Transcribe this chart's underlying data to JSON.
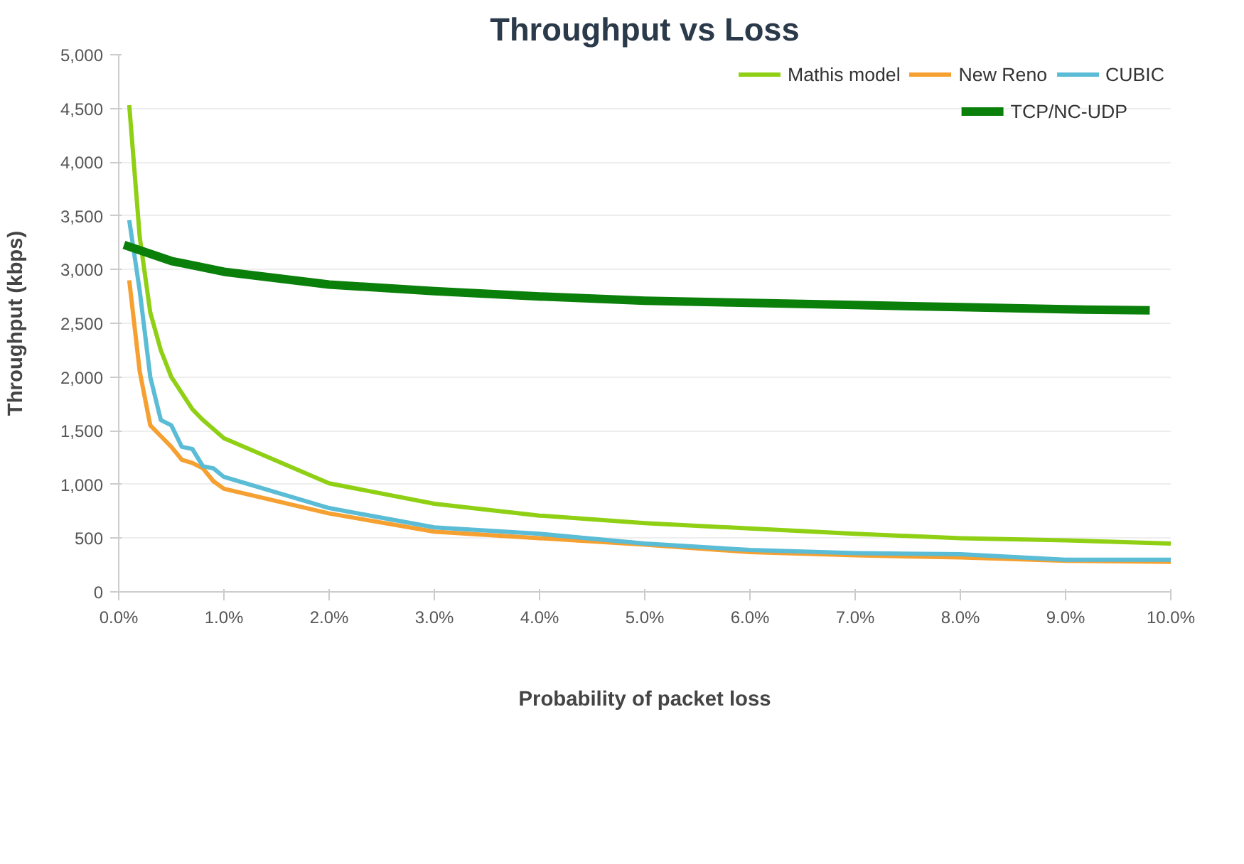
{
  "chart_data": {
    "type": "line",
    "title": "Throughput vs Loss",
    "xlabel": "Probability of packet loss",
    "ylabel": "Throughput (kbps)",
    "xlim": [
      0,
      10
    ],
    "ylim": [
      0,
      5000
    ],
    "xticks": [
      {
        "value": 0,
        "label": "0.0%"
      },
      {
        "value": 1,
        "label": "1.0%"
      },
      {
        "value": 2,
        "label": "2.0%"
      },
      {
        "value": 3,
        "label": "3.0%"
      },
      {
        "value": 4,
        "label": "4.0%"
      },
      {
        "value": 5,
        "label": "5.0%"
      },
      {
        "value": 6,
        "label": "6.0%"
      },
      {
        "value": 7,
        "label": "7.0%"
      },
      {
        "value": 8,
        "label": "8.0%"
      },
      {
        "value": 9,
        "label": "9.0%"
      },
      {
        "value": 10,
        "label": "10.0%"
      }
    ],
    "yticks": [
      0,
      500,
      {
        "value": 1000,
        "label": "1,000"
      },
      {
        "value": 1500,
        "label": "1,500"
      },
      {
        "value": 2000,
        "label": "2,000"
      },
      {
        "value": 2500,
        "label": "2,500"
      },
      {
        "value": 3000,
        "label": "3,000"
      },
      {
        "value": 3500,
        "label": "3,500"
      },
      {
        "value": 4000,
        "label": "4,000"
      },
      {
        "value": 4500,
        "label": "4,500"
      },
      {
        "value": 5000,
        "label": "5,000"
      }
    ],
    "grid": "y",
    "legend": "top right",
    "marker": "none",
    "line_style": "solid",
    "series": [
      {
        "name": "Mathis model",
        "color": "#8fd014",
        "x": [
          0.1,
          0.2,
          0.3,
          0.4,
          0.5,
          0.7,
          0.8,
          1,
          2,
          3,
          4,
          5,
          6,
          7,
          8,
          9,
          10
        ],
        "values": [
          4530,
          3300,
          2600,
          2250,
          2000,
          1700,
          1600,
          1430,
          1010,
          820,
          710,
          640,
          590,
          540,
          500,
          480,
          450
        ]
      },
      {
        "name": "New Reno",
        "color": "#f5a030",
        "x": [
          0.1,
          0.2,
          0.3,
          0.4,
          0.5,
          0.6,
          0.7,
          0.8,
          0.9,
          1,
          2,
          3,
          4,
          5,
          6,
          7,
          8,
          9,
          10
        ],
        "values": [
          2900,
          2050,
          1550,
          1450,
          1350,
          1230,
          1200,
          1150,
          1030,
          960,
          730,
          560,
          500,
          440,
          370,
          340,
          320,
          290,
          280
        ]
      },
      {
        "name": "CUBIC",
        "color": "#5bbcd6",
        "x": [
          0.1,
          0.2,
          0.3,
          0.4,
          0.5,
          0.6,
          0.7,
          0.8,
          0.9,
          1,
          2,
          3,
          4,
          5,
          6,
          7,
          8,
          9,
          10
        ],
        "values": [
          3460,
          2800,
          2000,
          1600,
          1550,
          1350,
          1330,
          1170,
          1150,
          1070,
          780,
          600,
          540,
          450,
          390,
          360,
          350,
          300,
          300
        ]
      },
      {
        "name": "TCP/NC-UDP",
        "color": "#0a7f0a",
        "x": [
          0.05,
          0.5,
          1,
          2,
          3,
          4,
          5,
          6,
          7,
          8,
          9,
          9.8
        ],
        "values": [
          3230,
          3080,
          2980,
          2860,
          2800,
          2750,
          2710,
          2690,
          2670,
          2650,
          2630,
          2620
        ]
      }
    ]
  }
}
